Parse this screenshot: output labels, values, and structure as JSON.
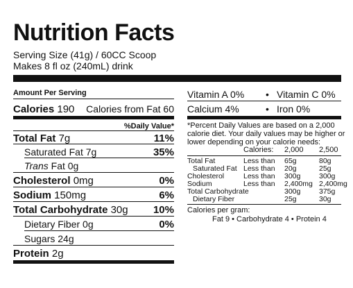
{
  "title": "Nutrition Facts",
  "serving_size": "Serving Size (41g) / 60CC Scoop",
  "makes": "Makes 8 fl oz (240mL) drink",
  "amount_per_serving": "Amount Per Serving",
  "calories_label": "Calories 190",
  "calories_from_fat": "Calories from Fat 60",
  "daily_value_header": "%Daily Value*",
  "nutrients": [
    {
      "label": "Total Fat",
      "amount": "7g",
      "dv": "11%"
    },
    {
      "label": "Saturated Fat",
      "amount": "7g",
      "dv": "35%"
    },
    {
      "label_italic": "Trans",
      "label": "Fat",
      "amount": "0g",
      "dv": ""
    },
    {
      "label": "Cholesterol",
      "amount": "0mg",
      "dv": "0%"
    },
    {
      "label": "Sodium",
      "amount": "150mg",
      "dv": "6%"
    },
    {
      "label": "Total Carbohydrate",
      "amount": "30g",
      "dv": "10%"
    },
    {
      "label": "Dietary Fiber",
      "amount": "0g",
      "dv": "0%"
    },
    {
      "label": "Sugars",
      "amount": "24g",
      "dv": ""
    },
    {
      "label": "Protein",
      "amount": "2g",
      "dv": ""
    }
  ],
  "vitamins": {
    "vitamin_a": "Vitamin A 0%",
    "vitamin_c": "Vitamin C 0%",
    "calcium": "Calcium 4%",
    "iron": "Iron 0%",
    "bullet": "•"
  },
  "footnote": {
    "line1": "*Percent Daily Values are based on a 2,000",
    "line2": "calorie diet. Your daily values may be higher or",
    "line3": "lower depending on your calorie needs:",
    "calories_label": "Calories:",
    "cal_2000": "2,000",
    "cal_2500": "2,500",
    "rows": [
      {
        "name": "Total Fat",
        "cmp": "Less than",
        "v1": "65g",
        "v2": "80g"
      },
      {
        "name": "Saturated Fat",
        "cmp": "Less than",
        "v1": "20g",
        "v2": "25g"
      },
      {
        "name": "Cholesterol",
        "cmp": "Less than",
        "v1": "300g",
        "v2": "300g"
      },
      {
        "name": "Sodium",
        "cmp": "Less than",
        "v1": "2,400mg",
        "v2": "2,400mg"
      },
      {
        "name": "Total Carbohydrate",
        "cmp": "",
        "v1": "300g",
        "v2": "375g"
      },
      {
        "name": "Dietary Fiber",
        "cmp": "",
        "v1": "25g",
        "v2": "30g"
      }
    ],
    "cal_per_gram": "Calories per gram:",
    "cal_per_gram_detail": "Fat 9  •  Carbohydrate 4  •  Protein 4"
  }
}
